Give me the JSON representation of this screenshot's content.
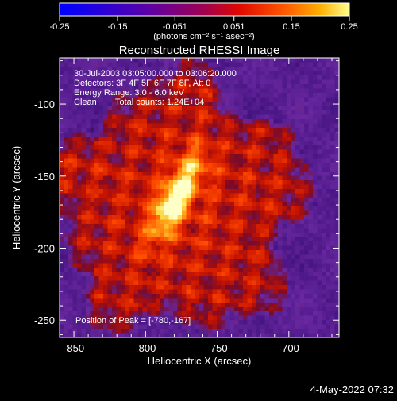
{
  "chart_data": {
    "type": "heatmap",
    "title": "Reconstructed RHESSI Image",
    "xlabel": "Heliocentric X (arcsec)",
    "ylabel": "Heliocentric Y (arcsec)",
    "xlim": [
      -860,
      -665
    ],
    "ylim": [
      -262,
      -68
    ],
    "x_ticks": [
      -850,
      -800,
      -750,
      -700
    ],
    "x_tick_labels": [
      "-850",
      "-800",
      "-750",
      "-700"
    ],
    "y_ticks": [
      -250,
      -200,
      -150,
      -100
    ],
    "y_tick_labels": [
      "-250",
      "-200",
      "-150",
      "-100"
    ],
    "colorbar": {
      "min": -0.25,
      "max": 0.25,
      "ticks": [
        -0.25,
        -0.15,
        -0.051,
        0.051,
        0.15,
        0.25
      ],
      "tick_labels": [
        "-0.25",
        "-0.15",
        "-0.051",
        "0.051",
        "0.15",
        "0.25"
      ],
      "unit_label": "(photons cm⁻² s⁻¹ asec⁻²)"
    },
    "peak": {
      "x": -780,
      "y": -167
    },
    "disk": {
      "center": [
        -777,
        -170
      ],
      "radius": 86
    },
    "annotations": {
      "time_range": "30-Jul-2003 03:05:00.000 to 03:06:20.000",
      "detectors": "Detectors: 3F 4F 5F 6F 7F 8F, Att 0",
      "energy_range": "Energy Range: 3.0 - 6.0 keV",
      "method": "Clean",
      "total_counts": "Total counts: 1.24E+04",
      "peak_position": "Position of Peak = [-780,-167]"
    },
    "footer_timestamp": "4-May-2022 07:32"
  }
}
